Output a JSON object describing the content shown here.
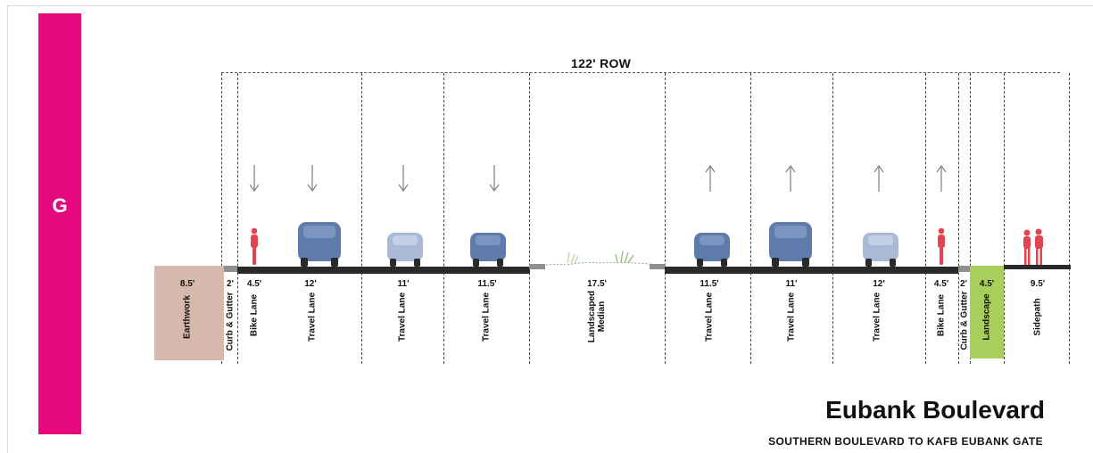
{
  "section_letter": "G",
  "row_label": "122' ROW",
  "title": "Eubank Boulevard",
  "subtitle": "SOUTHERN BOULEVARD TO KAFB EUBANK GATE",
  "colors": {
    "letter_bar": "#e5087f",
    "earthwork": "#d7b8ad",
    "landscape": "#a8cf5c",
    "vehicle": "#5f7bab",
    "vehicle_light": "#a9b9d6",
    "cyclist": "#e2454f"
  },
  "segments": [
    {
      "id": "earthwork",
      "width": "8.5'",
      "label": "Earthwork"
    },
    {
      "id": "curb-west",
      "width": "2'",
      "label": "Curb & Gutter"
    },
    {
      "id": "bike-west",
      "width": "4.5'",
      "label": "Bike Lane"
    },
    {
      "id": "travel-1",
      "width": "12'",
      "label": "Travel Lane"
    },
    {
      "id": "travel-2",
      "width": "11'",
      "label": "Travel Lane"
    },
    {
      "id": "travel-3",
      "width": "11.5'",
      "label": "Travel Lane"
    },
    {
      "id": "median",
      "width": "17.5'",
      "label": "Landscaped Median"
    },
    {
      "id": "travel-4",
      "width": "11.5'",
      "label": "Travel Lane"
    },
    {
      "id": "travel-5",
      "width": "11'",
      "label": "Travel Lane"
    },
    {
      "id": "travel-6",
      "width": "12'",
      "label": "Travel Lane"
    },
    {
      "id": "bike-east",
      "width": "4.5'",
      "label": "Bike Lane"
    },
    {
      "id": "curb-east",
      "width": "2'",
      "label": "Curb & Gutter"
    },
    {
      "id": "landscape",
      "width": "4.5'",
      "label": "Landscape"
    },
    {
      "id": "sidepath",
      "width": "9.5'",
      "label": "Sidepath"
    }
  ]
}
